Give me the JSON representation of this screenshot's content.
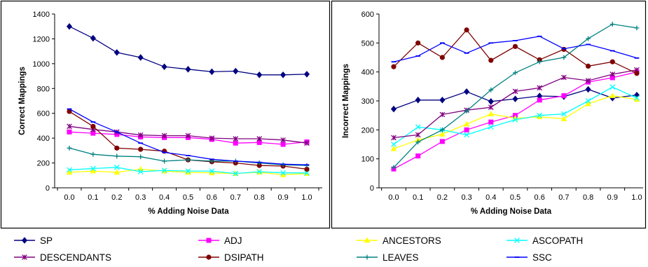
{
  "chart_data": [
    {
      "type": "line",
      "xlabel": "% Adding Noise Data",
      "ylabel": "Correct Mappings",
      "ylim": [
        0,
        1400
      ],
      "yticks": [
        0,
        200,
        400,
        600,
        800,
        1000,
        1200,
        1400
      ],
      "x_tick_labels": [
        "0.0",
        "0.1",
        "0.2",
        "0.3",
        "0.4",
        "0.5",
        "0.6",
        "0.7",
        "0.8",
        "0.9",
        "1.0"
      ],
      "x": [
        0.0,
        0.1,
        0.2,
        0.3,
        0.4,
        0.5,
        0.6,
        0.7,
        0.8,
        0.9,
        1.0
      ],
      "grid": false,
      "series": [
        {
          "name": "SP",
          "color": "#000080",
          "marker": "diamond",
          "values": [
            1300,
            1205,
            1090,
            1050,
            975,
            955,
            935,
            940,
            910,
            910,
            915
          ]
        },
        {
          "name": "ADJ",
          "color": "#ff00ff",
          "marker": "square",
          "values": [
            450,
            440,
            430,
            410,
            405,
            405,
            390,
            360,
            365,
            350,
            370
          ]
        },
        {
          "name": "ANCESTORS",
          "color": "#ffff00",
          "marker": "triangle",
          "values": [
            125,
            135,
            125,
            150,
            135,
            125,
            120,
            115,
            125,
            105,
            115
          ]
        },
        {
          "name": "ASCOPATH",
          "color": "#00ffff",
          "marker": "x",
          "values": [
            145,
            155,
            165,
            130,
            140,
            135,
            135,
            115,
            130,
            120,
            120
          ]
        },
        {
          "name": "DESCENDANTS",
          "color": "#800080",
          "marker": "star",
          "values": [
            495,
            470,
            450,
            425,
            420,
            420,
            400,
            395,
            395,
            385,
            360
          ]
        },
        {
          "name": "DSIPATH",
          "color": "#800000",
          "marker": "circle",
          "values": [
            615,
            495,
            320,
            310,
            295,
            225,
            210,
            200,
            180,
            175,
            150
          ]
        },
        {
          "name": "LEAVES",
          "color": "#008080",
          "marker": "plus",
          "values": [
            320,
            270,
            255,
            250,
            215,
            225,
            215,
            215,
            200,
            185,
            180
          ]
        },
        {
          "name": "SSC",
          "color": "#0000ff",
          "marker": "dash",
          "values": [
            635,
            530,
            450,
            360,
            285,
            260,
            230,
            215,
            205,
            190,
            185
          ]
        }
      ]
    },
    {
      "type": "line",
      "xlabel": "% Adding Noise Data",
      "ylabel": "Incorrect Mappings",
      "ylim": [
        0,
        600
      ],
      "yticks": [
        0,
        100,
        200,
        300,
        400,
        500,
        600
      ],
      "x_tick_labels": [
        "0.0",
        "0.1",
        "0.2",
        "0.3",
        "0.4",
        "0.5",
        "0.6",
        "0.7",
        "0.8",
        "0.9",
        "1.0"
      ],
      "x": [
        0.0,
        0.1,
        0.2,
        0.3,
        0.4,
        0.5,
        0.6,
        0.7,
        0.8,
        0.9,
        1.0
      ],
      "grid": false,
      "series": [
        {
          "name": "SP",
          "color": "#000080",
          "marker": "diamond",
          "values": [
            272,
            303,
            303,
            332,
            298,
            307,
            317,
            315,
            340,
            310,
            320
          ]
        },
        {
          "name": "ADJ",
          "color": "#ff00ff",
          "marker": "square",
          "values": [
            65,
            110,
            160,
            200,
            227,
            250,
            303,
            318,
            365,
            380,
            400
          ]
        },
        {
          "name": "ANCESTORS",
          "color": "#ffff00",
          "marker": "triangle",
          "values": [
            135,
            165,
            185,
            220,
            255,
            240,
            245,
            238,
            290,
            318,
            305
          ]
        },
        {
          "name": "ASCOPATH",
          "color": "#00ffff",
          "marker": "x",
          "values": [
            150,
            210,
            200,
            183,
            210,
            235,
            250,
            255,
            300,
            348,
            310
          ]
        },
        {
          "name": "DESCENDANTS",
          "color": "#800080",
          "marker": "star",
          "values": [
            173,
            183,
            253,
            268,
            278,
            333,
            345,
            381,
            370,
            392,
            407
          ]
        },
        {
          "name": "DSIPATH",
          "color": "#800000",
          "marker": "circle",
          "values": [
            418,
            500,
            450,
            545,
            440,
            488,
            442,
            478,
            420,
            435,
            395
          ]
        },
        {
          "name": "LEAVES",
          "color": "#008080",
          "marker": "plus",
          "values": [
            70,
            158,
            200,
            265,
            338,
            397,
            435,
            450,
            515,
            565,
            552
          ]
        },
        {
          "name": "SSC",
          "color": "#0000ff",
          "marker": "dash",
          "values": [
            435,
            455,
            500,
            465,
            500,
            508,
            523,
            480,
            495,
            473,
            448
          ]
        }
      ]
    }
  ],
  "legend": {
    "placement": "bottom",
    "items": [
      {
        "label": "SP",
        "color": "#000080",
        "marker": "diamond"
      },
      {
        "label": "ADJ",
        "color": "#ff00ff",
        "marker": "square"
      },
      {
        "label": "ANCESTORS",
        "color": "#ffff00",
        "marker": "triangle"
      },
      {
        "label": "ASCOPATH",
        "color": "#00ffff",
        "marker": "x"
      },
      {
        "label": "DESCENDANTS",
        "color": "#800080",
        "marker": "star"
      },
      {
        "label": "DSIPATH",
        "color": "#800000",
        "marker": "circle"
      },
      {
        "label": "LEAVES",
        "color": "#008080",
        "marker": "plus"
      },
      {
        "label": "SSC",
        "color": "#0000ff",
        "marker": "dash"
      }
    ]
  }
}
